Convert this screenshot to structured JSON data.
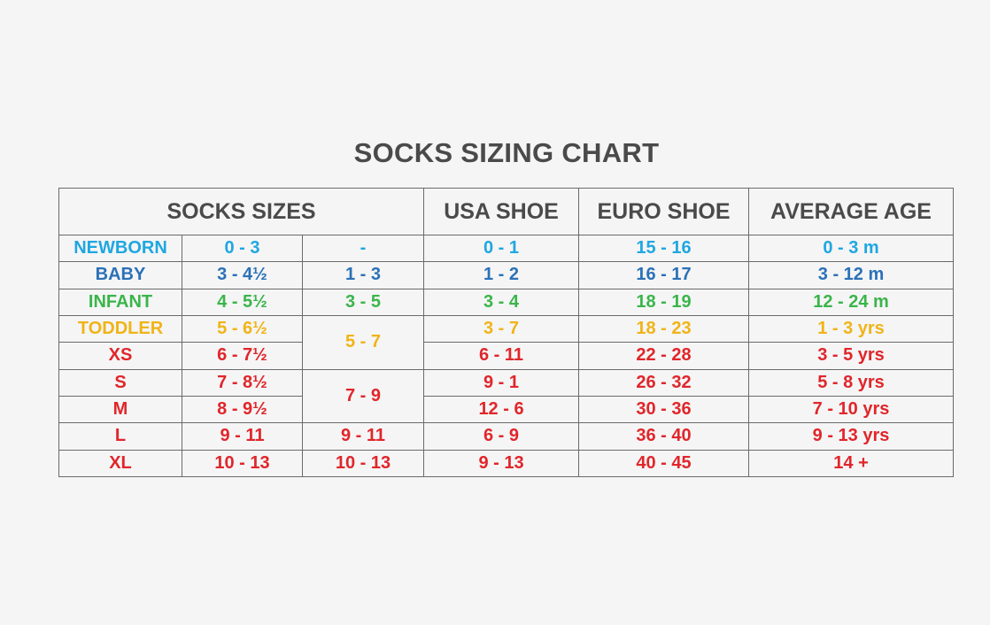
{
  "chart_data": {
    "type": "table",
    "title": "SOCKS SIZING CHART",
    "headers": [
      "SOCKS SIZES",
      "USA SHOE",
      "EURO SHOE",
      "AVERAGE AGE"
    ],
    "colors": {
      "header": "#4a4a4a",
      "newborn": "#1ea7e1",
      "baby": "#2b71b8",
      "infant": "#3ab54a",
      "toddler": "#f0b418",
      "red": "#e0262b",
      "border": "#6a6a6a"
    },
    "rows": [
      {
        "size": "NEWBORN",
        "sock_size": "0 - 3",
        "alt_size": "-",
        "usa_shoe": "0 - 1",
        "euro_shoe": "15 - 16",
        "age": "0 - 3 m",
        "color": "#1ea7e1"
      },
      {
        "size": "BABY",
        "sock_size": "3 - 4½",
        "alt_size": "1 - 3",
        "usa_shoe": "1 - 2",
        "euro_shoe": "16 - 17",
        "age": "3 - 12 m",
        "color": "#2b71b8"
      },
      {
        "size": "INFANT",
        "sock_size": "4 - 5½",
        "alt_size": "3 - 5",
        "usa_shoe": "3 - 4",
        "euro_shoe": "18 - 19",
        "age": "12 - 24 m",
        "color": "#3ab54a"
      },
      {
        "size": "TODDLER",
        "sock_size": "5 - 6½",
        "alt_size": "5 - 7",
        "usa_shoe": "3 - 7",
        "euro_shoe": "18 - 23",
        "age": "1 - 3 yrs",
        "color": "#f0b418"
      },
      {
        "size": "XS",
        "sock_size": "6 - 7½",
        "alt_size": null,
        "usa_shoe": "6 - 11",
        "euro_shoe": "22 - 28",
        "age": "3 - 5 yrs",
        "color": "#e0262b"
      },
      {
        "size": "S",
        "sock_size": "7 - 8½",
        "alt_size": "7 - 9",
        "usa_shoe": "9 - 1",
        "euro_shoe": "26 - 32",
        "age": "5 - 8 yrs",
        "color": "#e0262b"
      },
      {
        "size": "M",
        "sock_size": "8 - 9½",
        "alt_size": null,
        "usa_shoe": "12 - 6",
        "euro_shoe": "30 - 36",
        "age": "7 - 10 yrs",
        "color": "#e0262b"
      },
      {
        "size": "L",
        "sock_size": "9 - 11",
        "alt_size": "9 - 11",
        "usa_shoe": "6 - 9",
        "euro_shoe": "36 - 40",
        "age": "9 - 13 yrs",
        "color": "#e0262b"
      },
      {
        "size": "XL",
        "sock_size": "10 - 13",
        "alt_size": "10 - 13",
        "usa_shoe": "9 - 13",
        "euro_shoe": "40 - 45",
        "age": "14 +",
        "color": "#e0262b"
      }
    ]
  }
}
